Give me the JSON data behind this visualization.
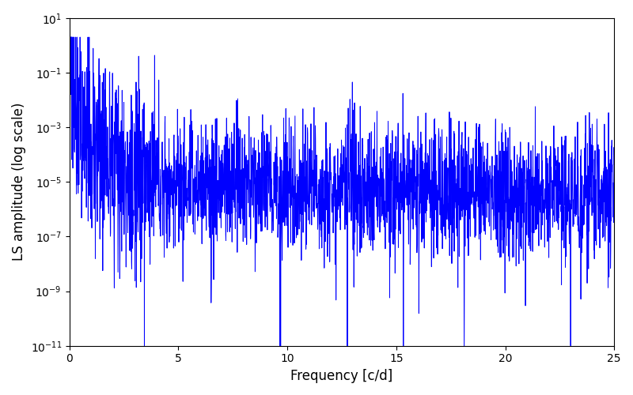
{
  "title": "",
  "xlabel": "Frequency [c/d]",
  "ylabel": "LS amplitude (log scale)",
  "line_color": "#0000ff",
  "line_width": 0.7,
  "xlim": [
    0,
    25
  ],
  "ylim_log_min": -11,
  "ylim_log_max": 1,
  "x_ticks": [
    0,
    5,
    10,
    15,
    20,
    25
  ],
  "background_color": "#ffffff",
  "seed": 12345,
  "n_points": 2500,
  "figsize": [
    8.0,
    5.0
  ],
  "dpi": 100
}
